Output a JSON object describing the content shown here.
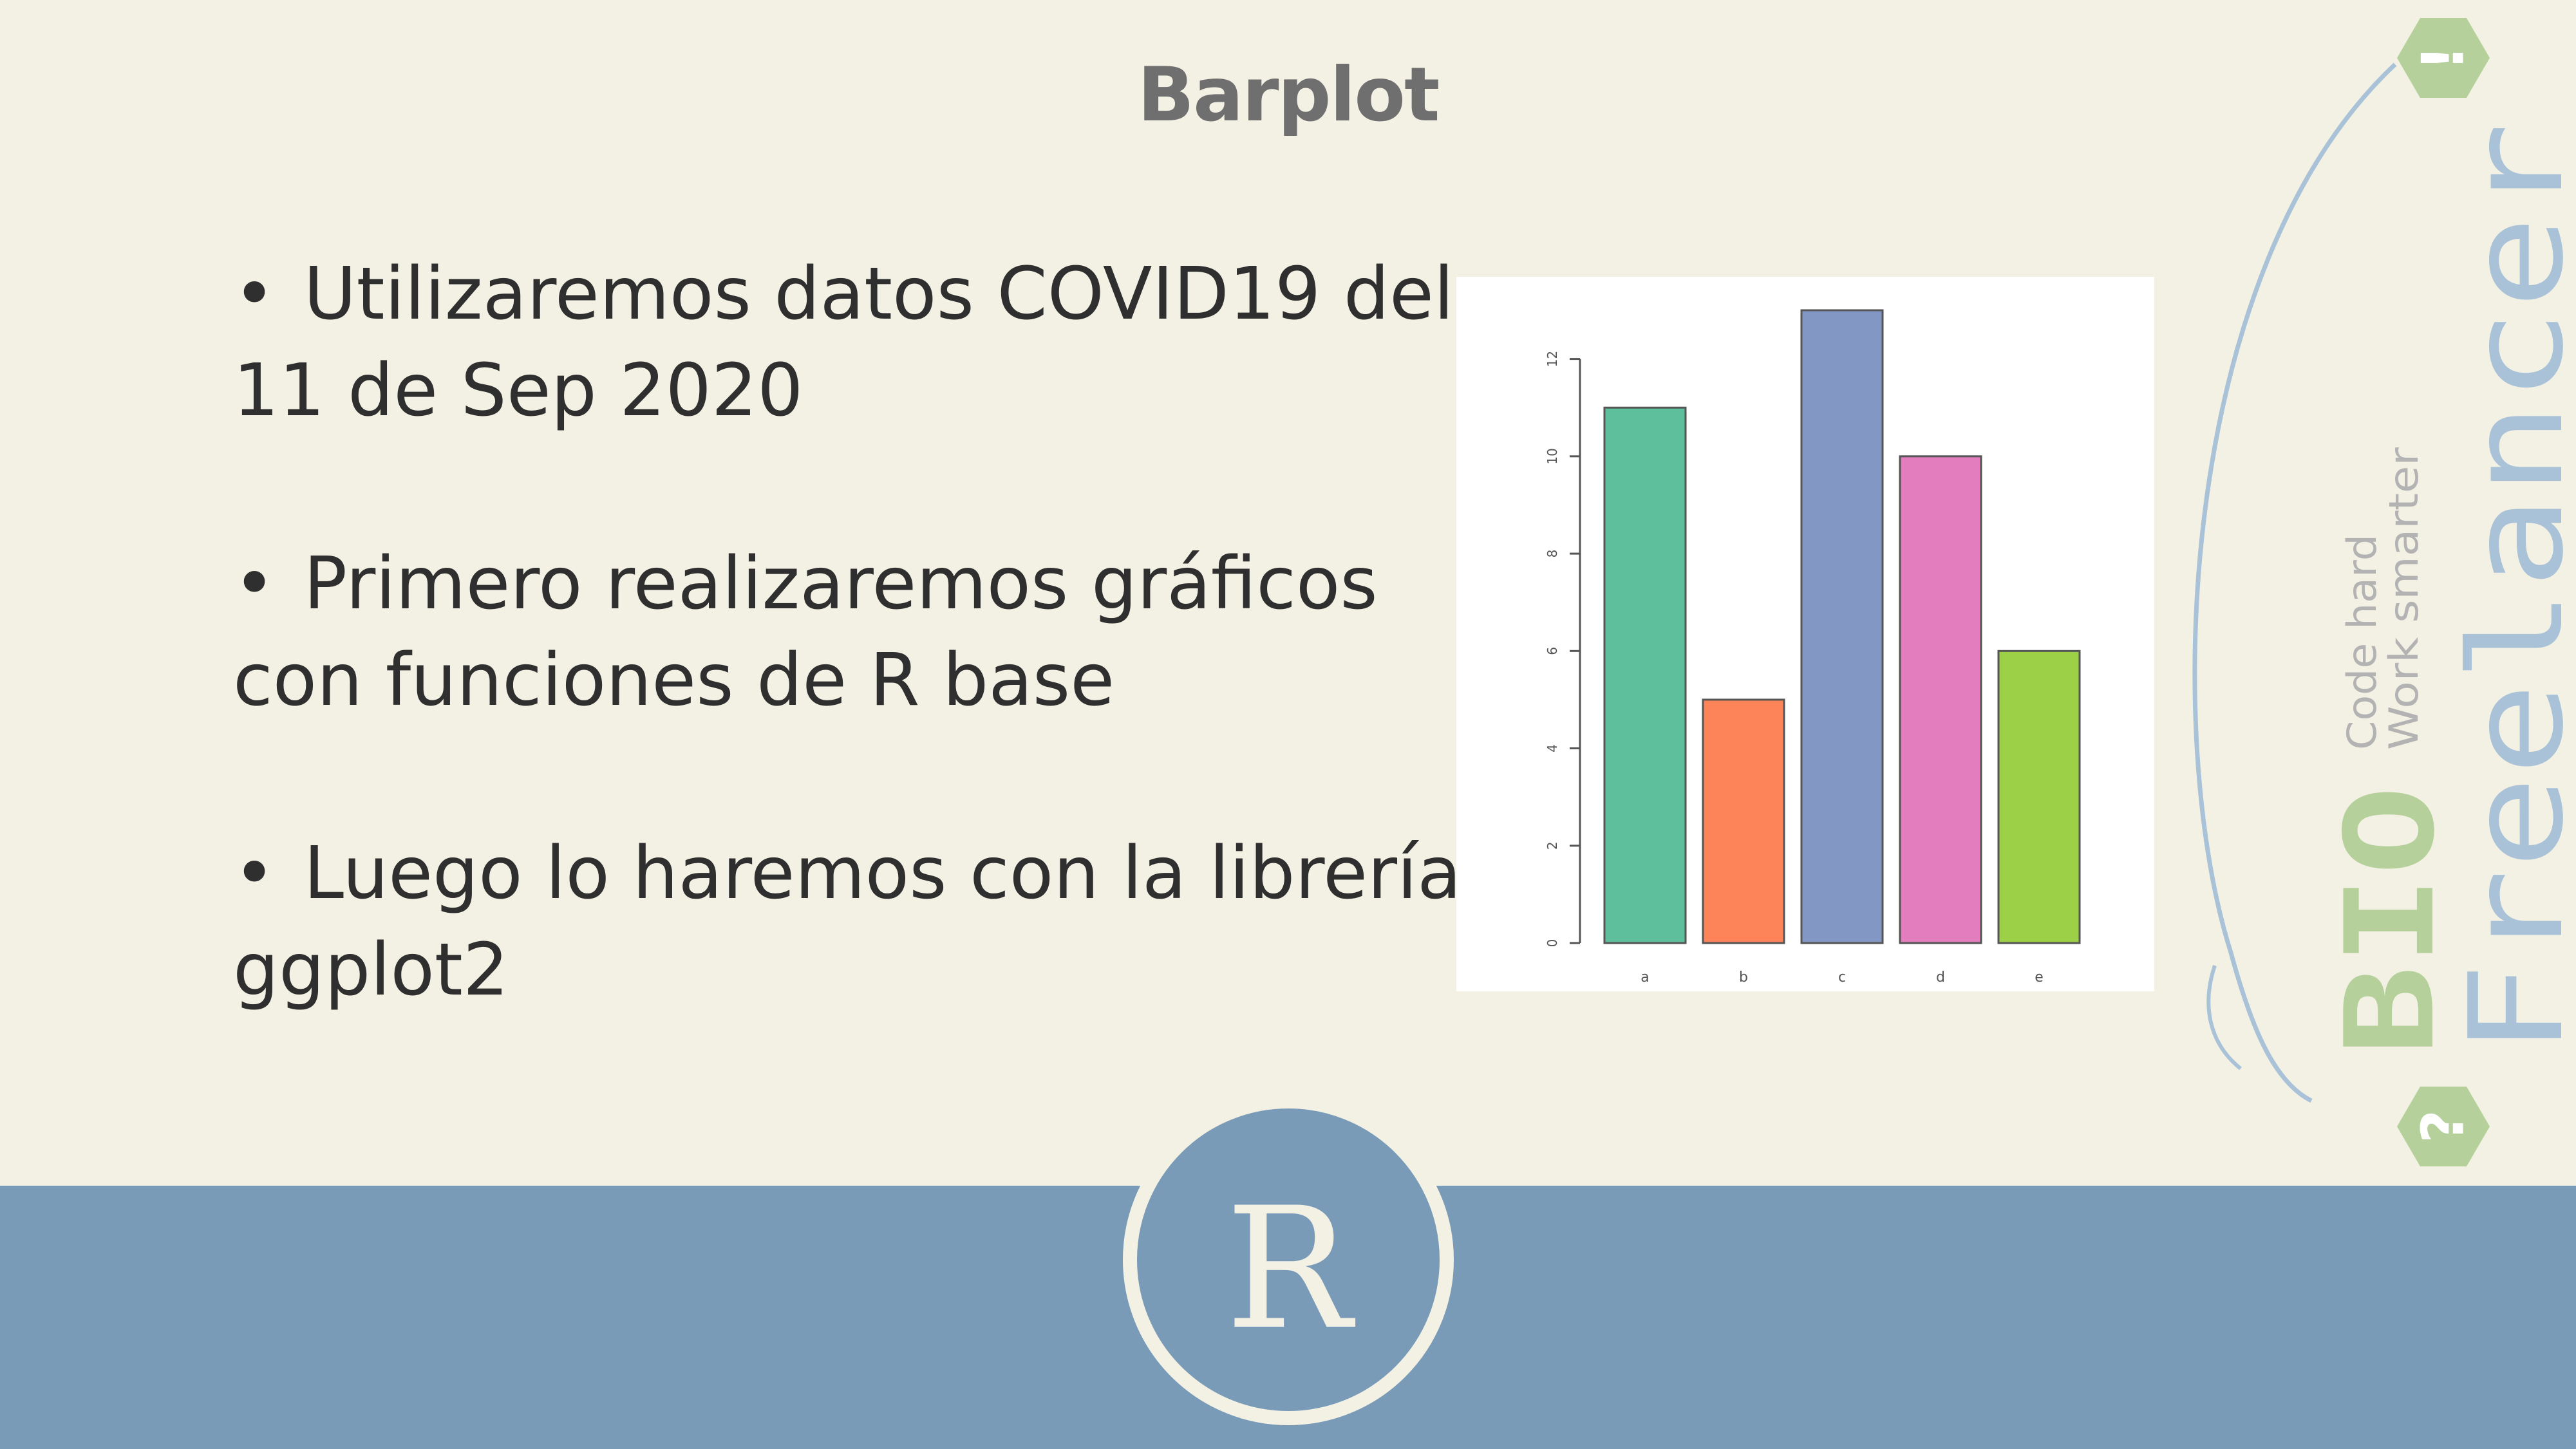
{
  "slide": {
    "title": "Barplot",
    "bullets": [
      {
        "line1": "Utilizaremos datos COVID19  del",
        "line2": "11 de Sep 2020"
      },
      {
        "line1": "Primero realizaremos gráficos",
        "line2": "con funciones de R base"
      },
      {
        "line1": "Luego lo haremos con la librería",
        "line2": "ggplot2"
      }
    ],
    "bullet_symbol": "•"
  },
  "chart_data": {
    "type": "bar",
    "categories": [
      "a",
      "b",
      "c",
      "d",
      "e"
    ],
    "values": [
      11,
      5,
      13,
      10,
      6
    ],
    "colors": [
      "#5dbf9b",
      "#fc8458",
      "#8297c4",
      "#e47dbd",
      "#9bd047"
    ],
    "ylim": [
      0,
      13
    ],
    "yticks": [
      0,
      2,
      4,
      6,
      8,
      10,
      12
    ],
    "title": "",
    "xlabel": "",
    "ylabel": ""
  },
  "logo": {
    "r_letter": "R",
    "brand_word1": "BIO",
    "brand_word2": "Freelancer",
    "tagline1": "Code hard",
    "tagline2": "Work smarter",
    "hex_top": "!",
    "hex_bottom": "?",
    "colors": {
      "green": "#b5d09a",
      "blue": "#a9c2d8",
      "gray": "#b3b3b3"
    }
  }
}
